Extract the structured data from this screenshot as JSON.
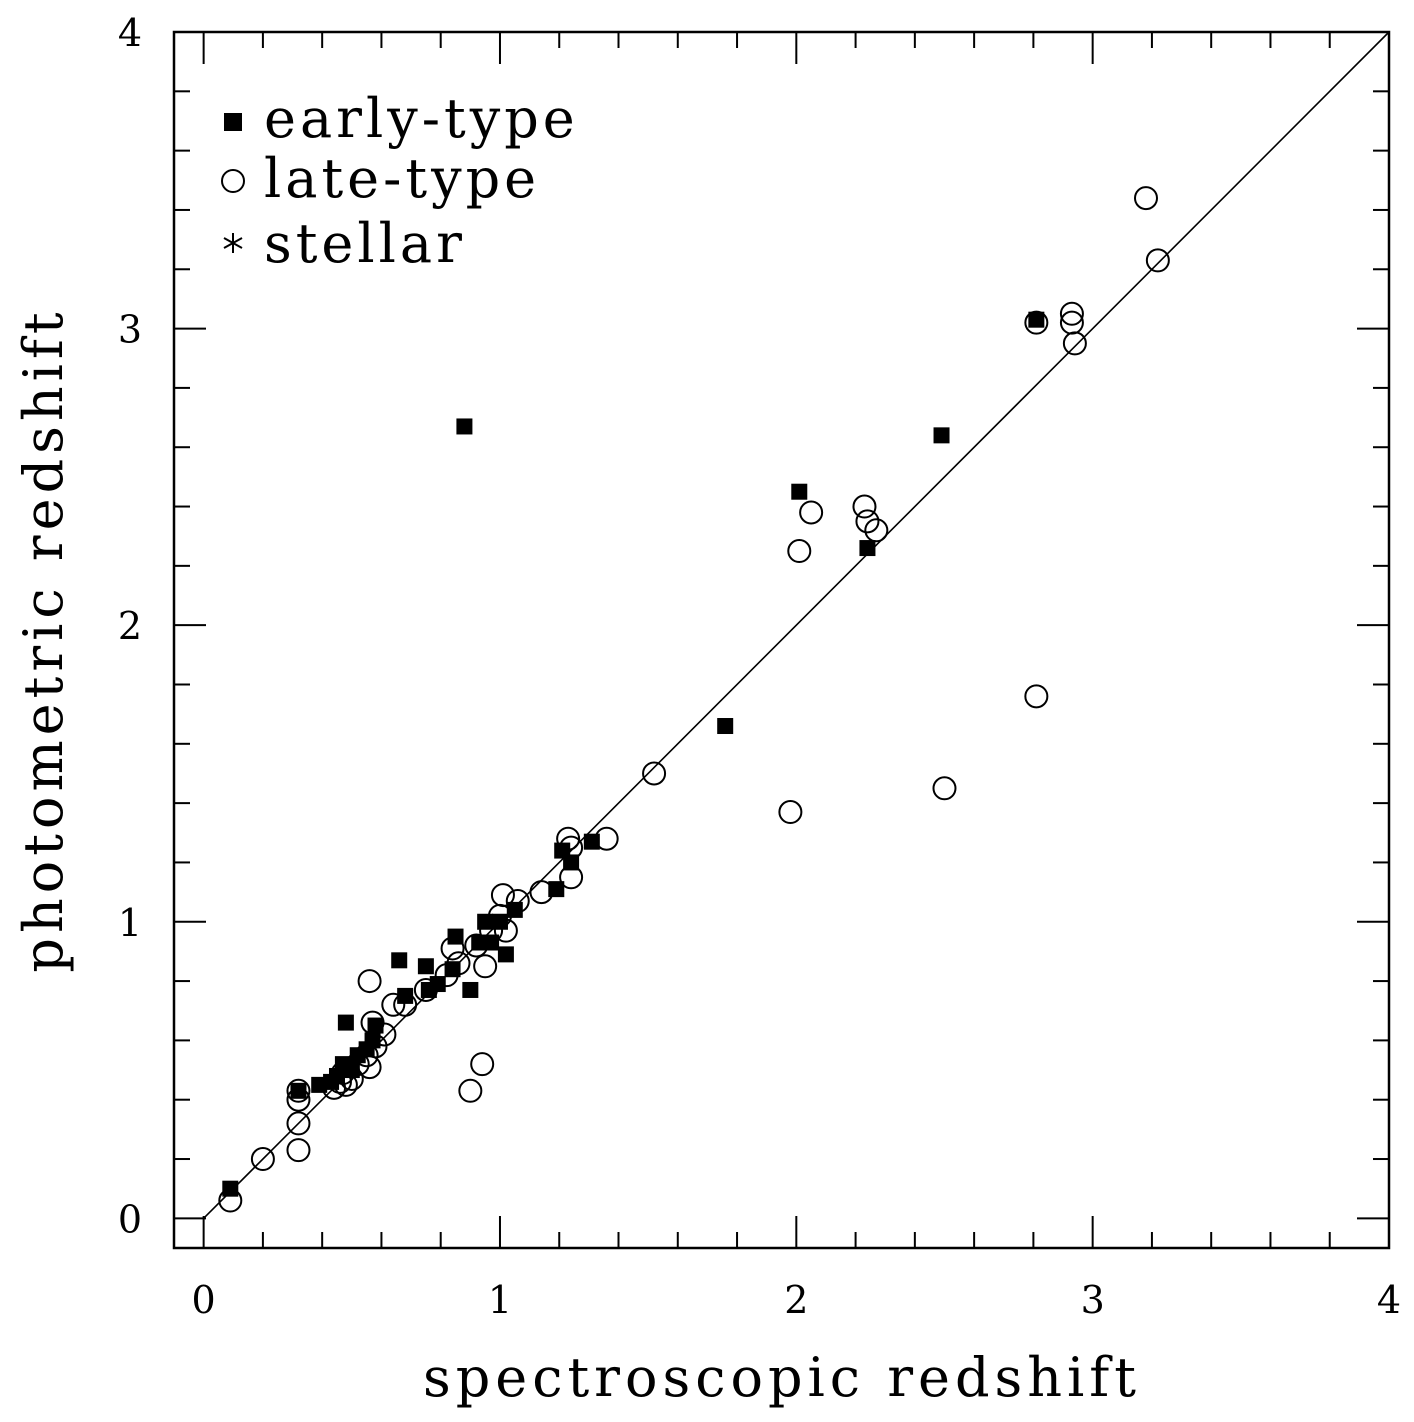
{
  "chart_data": {
    "type": "scatter",
    "title": "",
    "xlabel": "spectroscopic redshift",
    "ylabel": "photometric redshift",
    "xlim": [
      -0.1,
      4
    ],
    "ylim": [
      -0.1,
      4
    ],
    "xticks": [
      "0",
      "1",
      "2",
      "3",
      "4"
    ],
    "yticks": [
      "0",
      "1",
      "2",
      "3",
      "4"
    ],
    "reference_line": "y = x",
    "legend": {
      "position": "top-left",
      "entries": [
        {
          "label": "early-type",
          "marker": "filled-square"
        },
        {
          "label": "late-type",
          "marker": "open-circle"
        },
        {
          "label": "stellar",
          "marker": "asterisk"
        }
      ]
    },
    "series": [
      {
        "name": "early-type",
        "marker": "filled-square",
        "points": [
          [
            0.09,
            0.1
          ],
          [
            0.32,
            0.43
          ],
          [
            0.39,
            0.45
          ],
          [
            0.43,
            0.46
          ],
          [
            0.45,
            0.48
          ],
          [
            0.47,
            0.52
          ],
          [
            0.48,
            0.66
          ],
          [
            0.5,
            0.5
          ],
          [
            0.52,
            0.55
          ],
          [
            0.55,
            0.57
          ],
          [
            0.57,
            0.6
          ],
          [
            0.58,
            0.65
          ],
          [
            0.66,
            0.87
          ],
          [
            0.68,
            0.75
          ],
          [
            0.75,
            0.85
          ],
          [
            0.76,
            0.77
          ],
          [
            0.79,
            0.79
          ],
          [
            0.84,
            0.84
          ],
          [
            0.85,
            0.95
          ],
          [
            0.9,
            0.77
          ],
          [
            0.88,
            2.67
          ],
          [
            0.93,
            0.93
          ],
          [
            0.95,
            1.0
          ],
          [
            0.97,
            0.93
          ],
          [
            1.0,
            1.0
          ],
          [
            1.02,
            0.89
          ],
          [
            1.05,
            1.04
          ],
          [
            1.19,
            1.11
          ],
          [
            1.21,
            1.24
          ],
          [
            1.24,
            1.2
          ],
          [
            1.31,
            1.27
          ],
          [
            1.76,
            1.66
          ],
          [
            2.01,
            2.45
          ],
          [
            2.24,
            2.26
          ],
          [
            2.49,
            2.64
          ],
          [
            2.81,
            3.03
          ]
        ]
      },
      {
        "name": "late-type",
        "marker": "open-circle",
        "points": [
          [
            0.09,
            0.06
          ],
          [
            0.2,
            0.2
          ],
          [
            0.32,
            0.23
          ],
          [
            0.32,
            0.32
          ],
          [
            0.32,
            0.4
          ],
          [
            0.32,
            0.43
          ],
          [
            0.44,
            0.44
          ],
          [
            0.46,
            0.46
          ],
          [
            0.47,
            0.49
          ],
          [
            0.48,
            0.45
          ],
          [
            0.5,
            0.47
          ],
          [
            0.52,
            0.52
          ],
          [
            0.55,
            0.55
          ],
          [
            0.56,
            0.8
          ],
          [
            0.56,
            0.51
          ],
          [
            0.57,
            0.66
          ],
          [
            0.58,
            0.58
          ],
          [
            0.61,
            0.62
          ],
          [
            0.64,
            0.72
          ],
          [
            0.68,
            0.72
          ],
          [
            0.75,
            0.77
          ],
          [
            0.82,
            0.82
          ],
          [
            0.84,
            0.91
          ],
          [
            0.86,
            0.86
          ],
          [
            0.9,
            0.43
          ],
          [
            0.92,
            0.92
          ],
          [
            0.94,
            0.52
          ],
          [
            0.95,
            0.85
          ],
          [
            0.97,
            0.97
          ],
          [
            1.0,
            1.02
          ],
          [
            1.02,
            0.97
          ],
          [
            1.01,
            1.09
          ],
          [
            1.06,
            1.07
          ],
          [
            1.14,
            1.1
          ],
          [
            1.23,
            1.28
          ],
          [
            1.24,
            1.15
          ],
          [
            1.24,
            1.25
          ],
          [
            1.36,
            1.28
          ],
          [
            1.52,
            1.5
          ],
          [
            1.98,
            1.37
          ],
          [
            2.01,
            2.25
          ],
          [
            2.05,
            2.38
          ],
          [
            2.23,
            2.4
          ],
          [
            2.24,
            2.35
          ],
          [
            2.27,
            2.32
          ],
          [
            2.5,
            1.45
          ],
          [
            2.81,
            1.76
          ],
          [
            2.81,
            3.02
          ],
          [
            2.93,
            3.05
          ],
          [
            2.93,
            3.02
          ],
          [
            2.94,
            2.95
          ],
          [
            3.18,
            3.44
          ],
          [
            3.22,
            3.23
          ]
        ]
      }
    ]
  }
}
